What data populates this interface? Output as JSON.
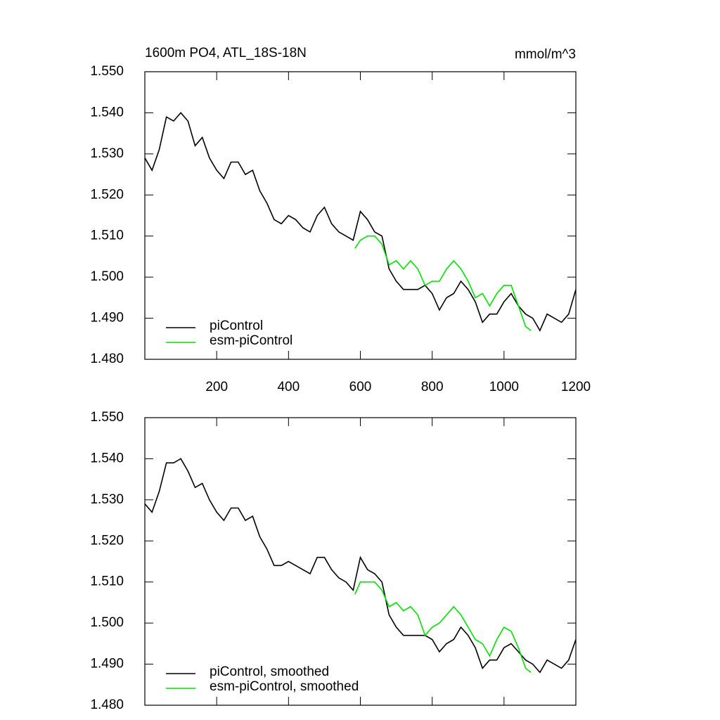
{
  "chart_data": [
    {
      "type": "line",
      "title": "1600m PO4, ATL_18S-18N",
      "units": "mmol/m^3",
      "xlim": [
        0,
        1200
      ],
      "xticks": [
        200,
        400,
        600,
        800,
        1000,
        1200
      ],
      "ylim": [
        1.48,
        1.55
      ],
      "yticks": [
        {
          "value": 1.48,
          "label": "1.480"
        },
        {
          "value": 1.49,
          "label": "1.490"
        },
        {
          "value": 1.5,
          "label": "1.500"
        },
        {
          "value": 1.51,
          "label": "1.510"
        },
        {
          "value": 1.52,
          "label": "1.520"
        },
        {
          "value": 1.53,
          "label": "1.530"
        },
        {
          "value": 1.54,
          "label": "1.540"
        },
        {
          "value": 1.55,
          "label": "1.550"
        }
      ],
      "series": [
        {
          "name": "piControl",
          "color": "#000000",
          "x": [
            0,
            20,
            40,
            60,
            80,
            100,
            120,
            140,
            160,
            180,
            200,
            220,
            240,
            260,
            280,
            300,
            320,
            340,
            360,
            380,
            400,
            420,
            440,
            460,
            480,
            500,
            520,
            540,
            560,
            580,
            600,
            620,
            640,
            660,
            680,
            700,
            720,
            740,
            760,
            780,
            800,
            820,
            840,
            860,
            880,
            900,
            920,
            940,
            960,
            980,
            1000,
            1020,
            1040,
            1060,
            1080,
            1100,
            1120,
            1140,
            1160,
            1180,
            1200
          ],
          "values": [
            1.529,
            1.526,
            1.531,
            1.539,
            1.538,
            1.54,
            1.538,
            1.532,
            1.534,
            1.529,
            1.526,
            1.524,
            1.528,
            1.528,
            1.525,
            1.526,
            1.521,
            1.518,
            1.514,
            1.513,
            1.515,
            1.514,
            1.512,
            1.511,
            1.515,
            1.517,
            1.513,
            1.511,
            1.51,
            1.509,
            1.516,
            1.514,
            1.511,
            1.51,
            1.502,
            1.499,
            1.497,
            1.497,
            1.497,
            1.498,
            1.496,
            1.492,
            1.495,
            1.496,
            1.499,
            1.497,
            1.494,
            1.489,
            1.491,
            1.491,
            1.494,
            1.496,
            1.493,
            1.491,
            1.49,
            1.487,
            1.491,
            1.49,
            1.489,
            1.491,
            1.497
          ]
        },
        {
          "name": "esm-piControl",
          "color": "#00e000",
          "x": [
            585,
            600,
            620,
            640,
            660,
            680,
            700,
            720,
            740,
            760,
            780,
            800,
            820,
            840,
            860,
            880,
            900,
            920,
            940,
            960,
            980,
            1000,
            1020,
            1040,
            1060,
            1075
          ],
          "values": [
            1.507,
            1.509,
            1.51,
            1.51,
            1.508,
            1.503,
            1.504,
            1.502,
            1.504,
            1.502,
            1.498,
            1.499,
            1.499,
            1.502,
            1.504,
            1.502,
            1.499,
            1.495,
            1.496,
            1.493,
            1.496,
            1.498,
            1.498,
            1.493,
            1.488,
            1.487
          ]
        }
      ]
    },
    {
      "type": "line",
      "xlim": [
        0,
        1200
      ],
      "xticks": [
        200,
        400,
        600,
        800,
        1000,
        1200
      ],
      "ylim": [
        1.48,
        1.55
      ],
      "yticks": [
        {
          "value": 1.48,
          "label": "1.480"
        },
        {
          "value": 1.49,
          "label": "1.490"
        },
        {
          "value": 1.5,
          "label": "1.500"
        },
        {
          "value": 1.51,
          "label": "1.510"
        },
        {
          "value": 1.52,
          "label": "1.520"
        },
        {
          "value": 1.53,
          "label": "1.530"
        },
        {
          "value": 1.54,
          "label": "1.540"
        },
        {
          "value": 1.55,
          "label": "1.550"
        }
      ],
      "series": [
        {
          "name": "piControl, smoothed",
          "color": "#000000",
          "x": [
            0,
            20,
            40,
            60,
            80,
            100,
            120,
            140,
            160,
            180,
            200,
            220,
            240,
            260,
            280,
            300,
            320,
            340,
            360,
            380,
            400,
            420,
            440,
            460,
            480,
            500,
            520,
            540,
            560,
            580,
            600,
            620,
            640,
            660,
            680,
            700,
            720,
            740,
            760,
            780,
            800,
            820,
            840,
            860,
            880,
            900,
            920,
            940,
            960,
            980,
            1000,
            1020,
            1040,
            1060,
            1080,
            1100,
            1120,
            1140,
            1160,
            1180,
            1200
          ],
          "values": [
            1.529,
            1.527,
            1.532,
            1.539,
            1.539,
            1.54,
            1.537,
            1.533,
            1.534,
            1.53,
            1.527,
            1.525,
            1.528,
            1.528,
            1.525,
            1.526,
            1.521,
            1.518,
            1.514,
            1.514,
            1.515,
            1.514,
            1.513,
            1.512,
            1.516,
            1.516,
            1.513,
            1.511,
            1.51,
            1.508,
            1.516,
            1.513,
            1.512,
            1.51,
            1.502,
            1.499,
            1.497,
            1.497,
            1.497,
            1.497,
            1.496,
            1.493,
            1.495,
            1.496,
            1.499,
            1.497,
            1.494,
            1.489,
            1.491,
            1.491,
            1.494,
            1.495,
            1.493,
            1.491,
            1.49,
            1.488,
            1.491,
            1.49,
            1.489,
            1.491,
            1.496
          ]
        },
        {
          "name": "esm-piControl, smoothed",
          "color": "#00e000",
          "x": [
            585,
            600,
            620,
            640,
            660,
            680,
            700,
            720,
            740,
            760,
            780,
            800,
            820,
            840,
            860,
            880,
            900,
            920,
            940,
            960,
            980,
            1000,
            1020,
            1040,
            1060,
            1075
          ],
          "values": [
            1.507,
            1.51,
            1.51,
            1.51,
            1.508,
            1.504,
            1.505,
            1.503,
            1.504,
            1.502,
            1.497,
            1.499,
            1.5,
            1.502,
            1.504,
            1.502,
            1.499,
            1.496,
            1.495,
            1.492,
            1.496,
            1.499,
            1.498,
            1.494,
            1.489,
            1.488
          ]
        }
      ]
    }
  ]
}
